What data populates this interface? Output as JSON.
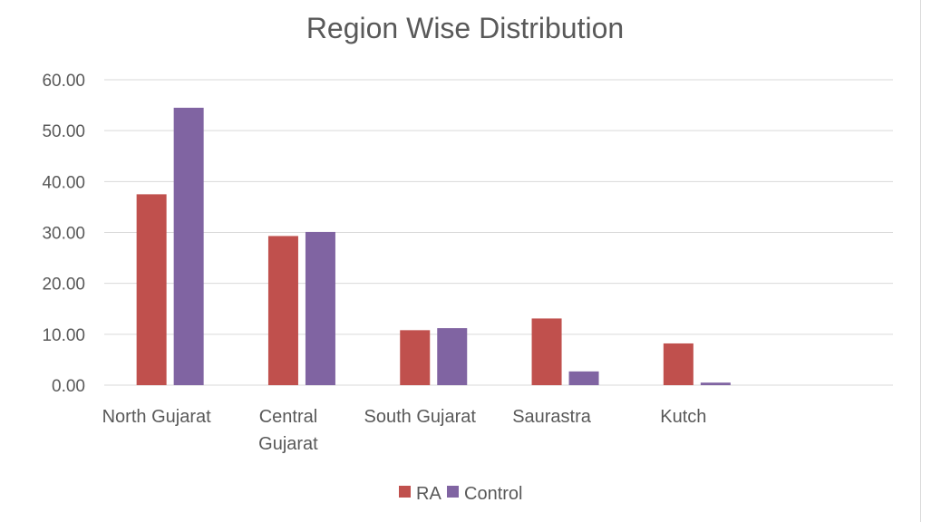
{
  "chart_data": {
    "type": "bar",
    "title": "Region Wise Distribution",
    "categories": [
      [
        "North Gujarat"
      ],
      [
        "Central",
        "Gujarat"
      ],
      [
        "South Gujarat"
      ],
      [
        "Saurastra"
      ],
      [
        "Kutch"
      ]
    ],
    "series": [
      {
        "name": "RA",
        "color": "#c0504d",
        "values": [
          37.5,
          29.3,
          10.8,
          13.1,
          8.2
        ]
      },
      {
        "name": "Control",
        "color": "#8064a2",
        "values": [
          54.5,
          30.1,
          11.2,
          2.7,
          0.5
        ]
      }
    ],
    "ylim": [
      0,
      60
    ],
    "yticks": [
      "0.00",
      "10.00",
      "20.00",
      "30.00",
      "40.00",
      "50.00",
      "60.00"
    ],
    "ytick_values": [
      0,
      10,
      20,
      30,
      40,
      50,
      60
    ],
    "grid": true,
    "legend_position": "bottom"
  }
}
